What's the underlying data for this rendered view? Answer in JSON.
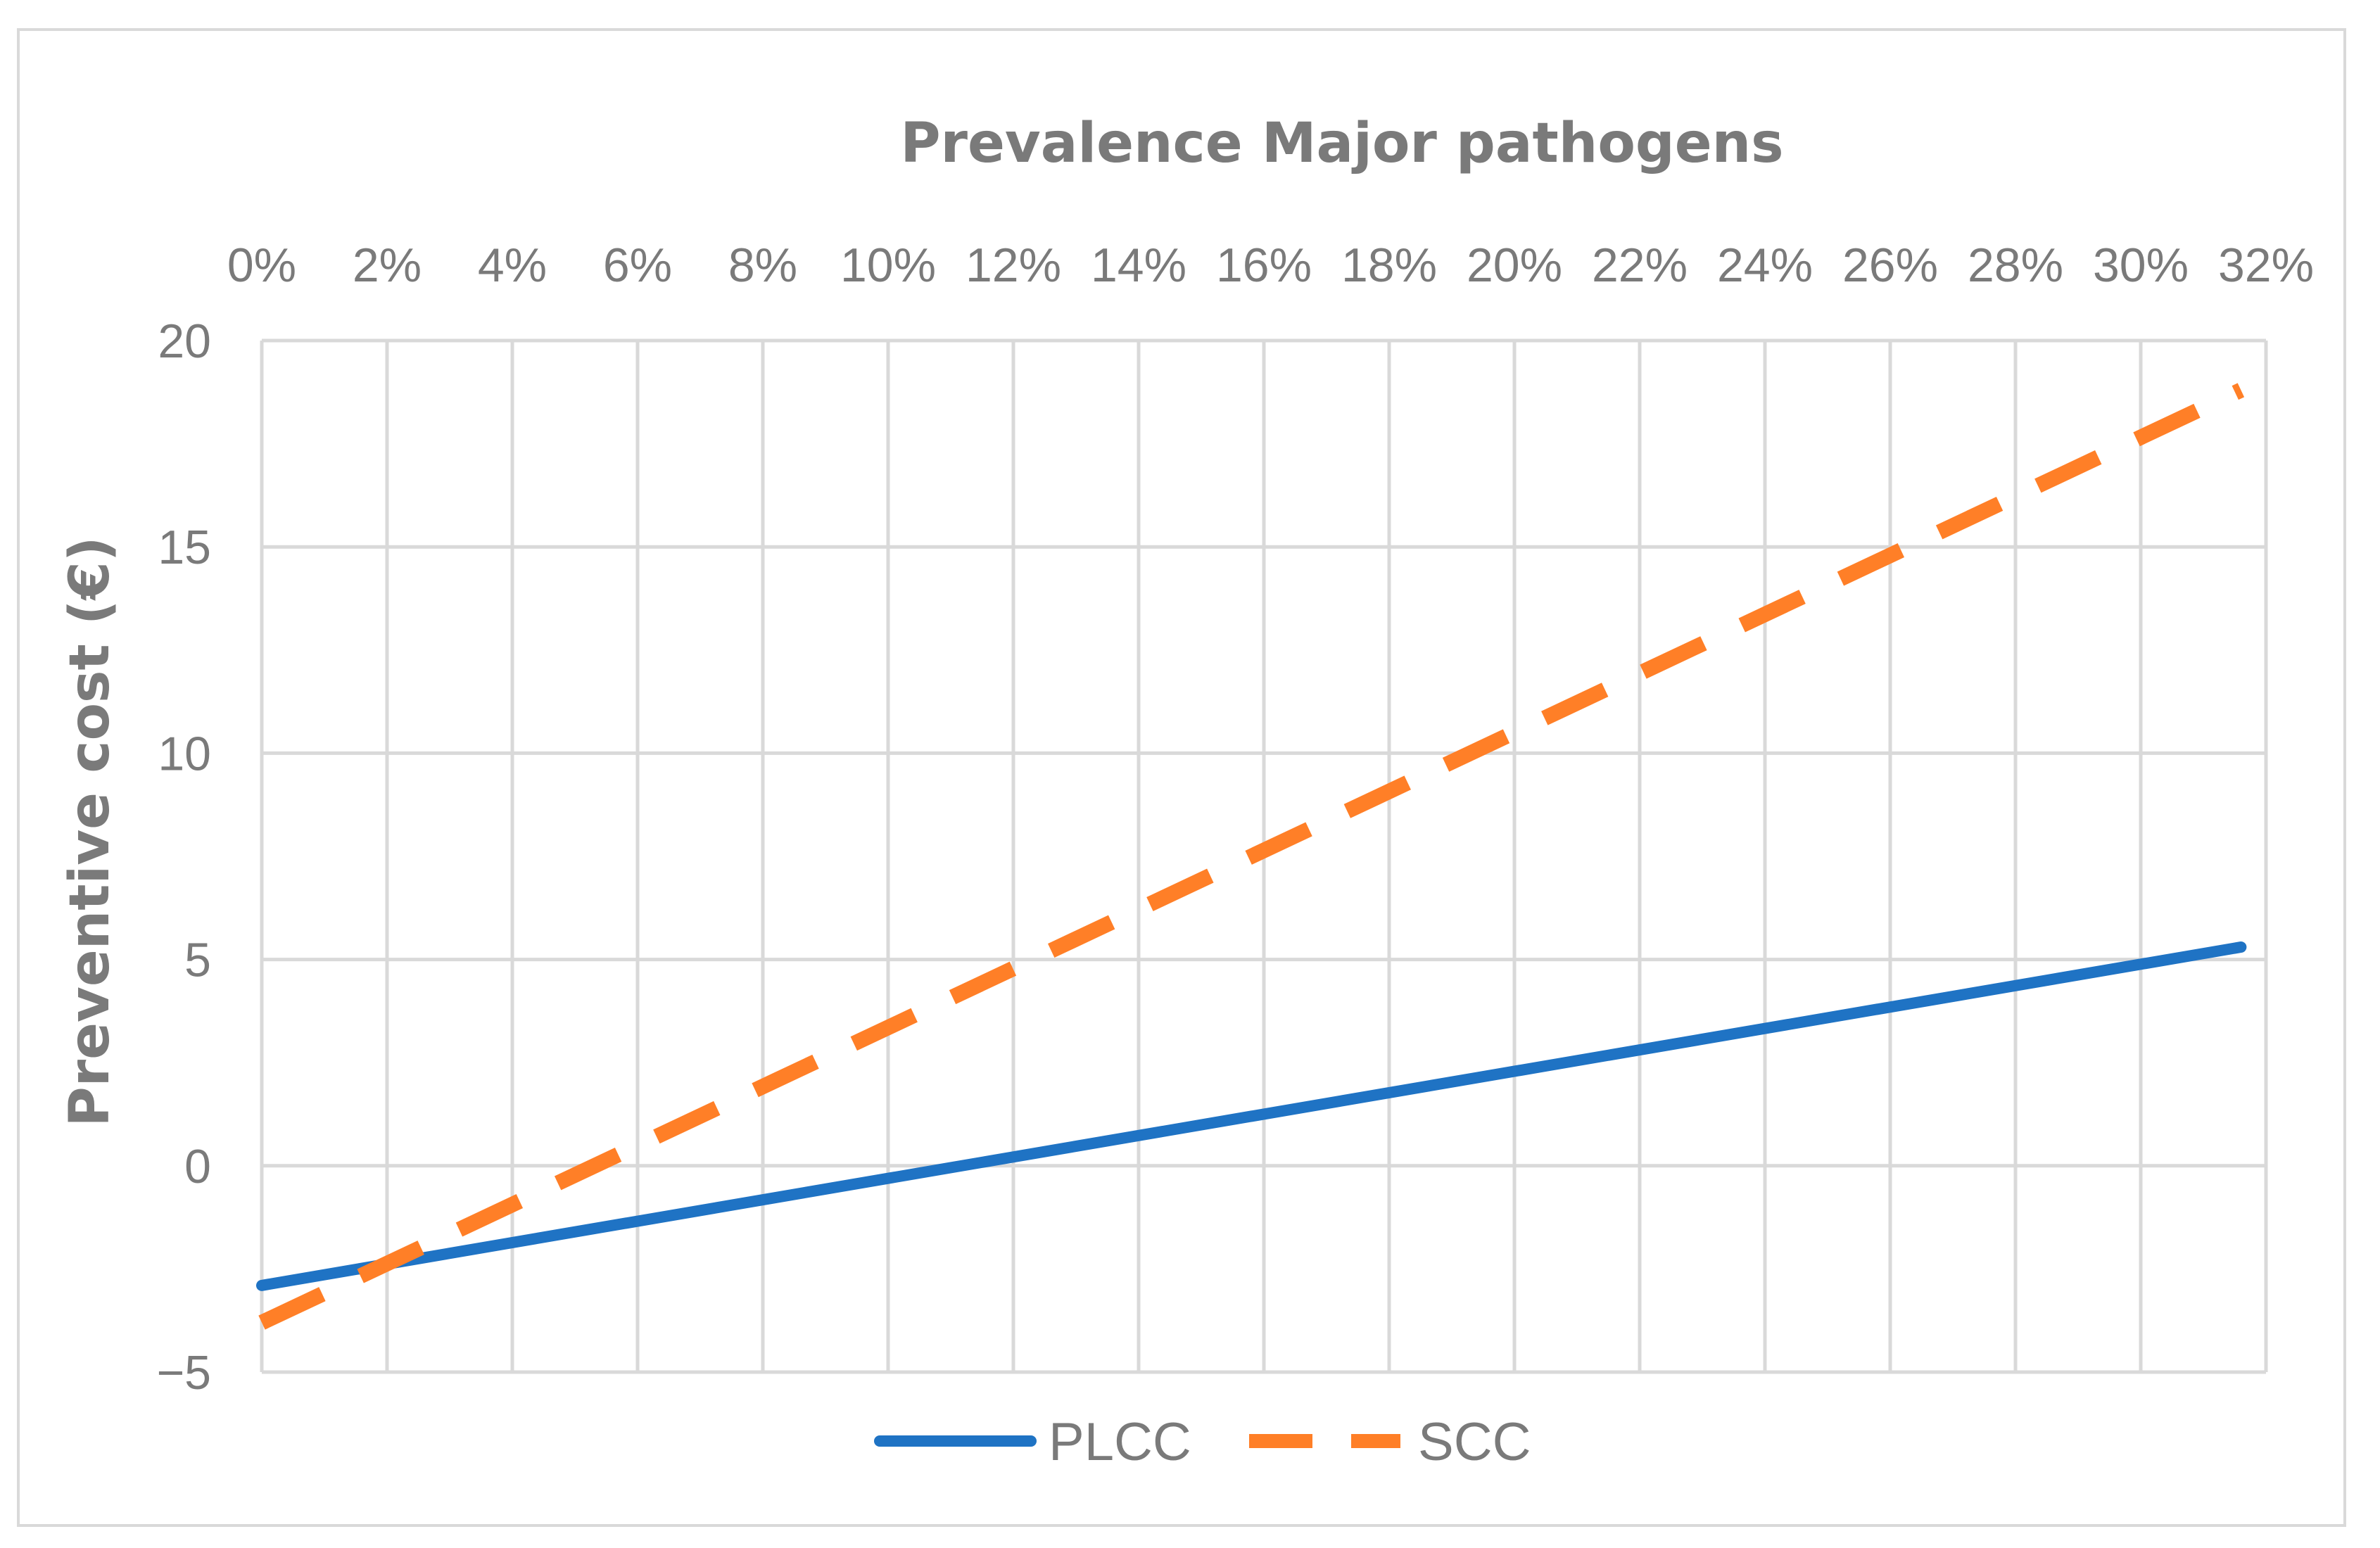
{
  "chart_data": {
    "type": "line",
    "title": "",
    "xlabel": "Prevalence Major pathogens",
    "ylabel": "Preventive cost (€)",
    "x_tick_labels": [
      "0%",
      "2%",
      "4%",
      "6%",
      "8%",
      "10%",
      "12%",
      "14%",
      "16%",
      "18%",
      "20%",
      "22%",
      "24%",
      "26%",
      "28%",
      "30%",
      "32%"
    ],
    "x_ticks": [
      0,
      2,
      4,
      6,
      8,
      10,
      12,
      14,
      16,
      18,
      20,
      22,
      24,
      26,
      28,
      30,
      32
    ],
    "xlim": [
      0,
      32
    ],
    "y_tick_labels": [
      "20",
      "15",
      "10",
      "5",
      "0",
      "−5"
    ],
    "y_ticks": [
      20,
      15,
      10,
      5,
      0,
      -5
    ],
    "ylim": [
      -5,
      20
    ],
    "grid": true,
    "legend_position": "bottom",
    "series": [
      {
        "name": "PLCC",
        "color": "#1f73c4",
        "style": "solid",
        "x": [
          0,
          31.6
        ],
        "y": [
          -2.9,
          5.3
        ]
      },
      {
        "name": "SCC",
        "color": "#ff7f27",
        "style": "dashed",
        "x": [
          0,
          31.6
        ],
        "y": [
          -3.8,
          18.8
        ]
      }
    ]
  }
}
